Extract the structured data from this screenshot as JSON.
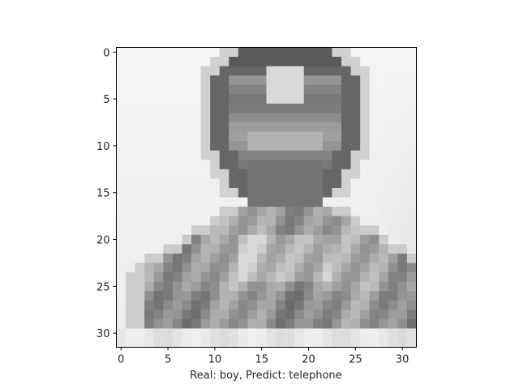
{
  "figure": {
    "xlabel": "Real: boy, Predict: telephone",
    "image": {
      "colormap": "grayscale",
      "grid_size": [
        32,
        32
      ],
      "description_rows_dark_to_light": "head and shoulders silhouette"
    },
    "axes": {
      "x_ticks": [
        0,
        5,
        10,
        15,
        20,
        25,
        30
      ],
      "y_ticks": [
        0,
        5,
        10,
        15,
        20,
        25,
        30
      ],
      "x_range": [
        -0.5,
        31.5
      ],
      "y_range": [
        -0.5,
        31.5
      ]
    }
  }
}
